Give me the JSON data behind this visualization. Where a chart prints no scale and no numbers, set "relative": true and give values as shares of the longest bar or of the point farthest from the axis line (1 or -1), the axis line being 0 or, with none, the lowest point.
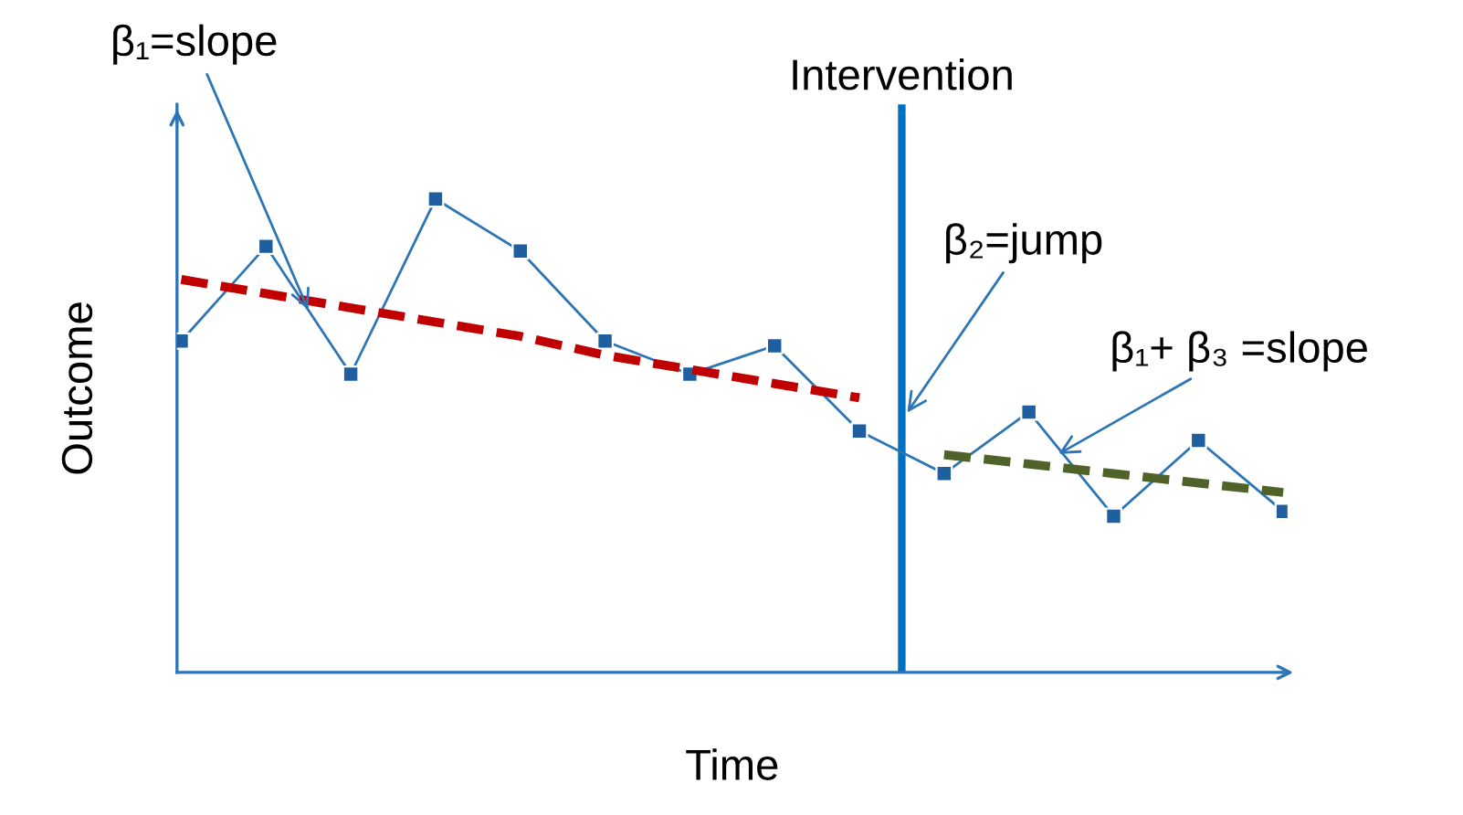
{
  "chart_data": {
    "type": "line",
    "relative": true,
    "xlabel": "Time",
    "ylabel": "Outcome",
    "categories": [
      null,
      null,
      null,
      null,
      null,
      null,
      null,
      null,
      null,
      null,
      null,
      null,
      null,
      null
    ],
    "series": [
      {
        "color": "#2e75b6",
        "marker": "square",
        "line_style": "solid",
        "values": [
          0.7,
          0.9,
          0.63,
          1.0,
          0.89,
          0.7,
          0.63,
          0.69,
          0.51,
          0.42,
          0.55,
          0.33,
          0.49,
          0.34
        ]
      },
      {
        "color": "#c00000",
        "marker": "none",
        "line_style": "dashed",
        "values": [
          0.83,
          0.8,
          0.77,
          0.74,
          0.71,
          0.67,
          0.64,
          0.61,
          0.58,
          null,
          null,
          null,
          null,
          null
        ]
      },
      {
        "color": "#4f6228",
        "marker": "none",
        "line_style": "dashed",
        "values": [
          null,
          null,
          null,
          null,
          null,
          null,
          null,
          null,
          null,
          0.46,
          0.44,
          0.42,
          0.4,
          0.38
        ]
      }
    ],
    "annotations": [
      "β₁=slope",
      "β₂=jump",
      "β₁+ β₃ =slope",
      "Intervention"
    ]
  }
}
